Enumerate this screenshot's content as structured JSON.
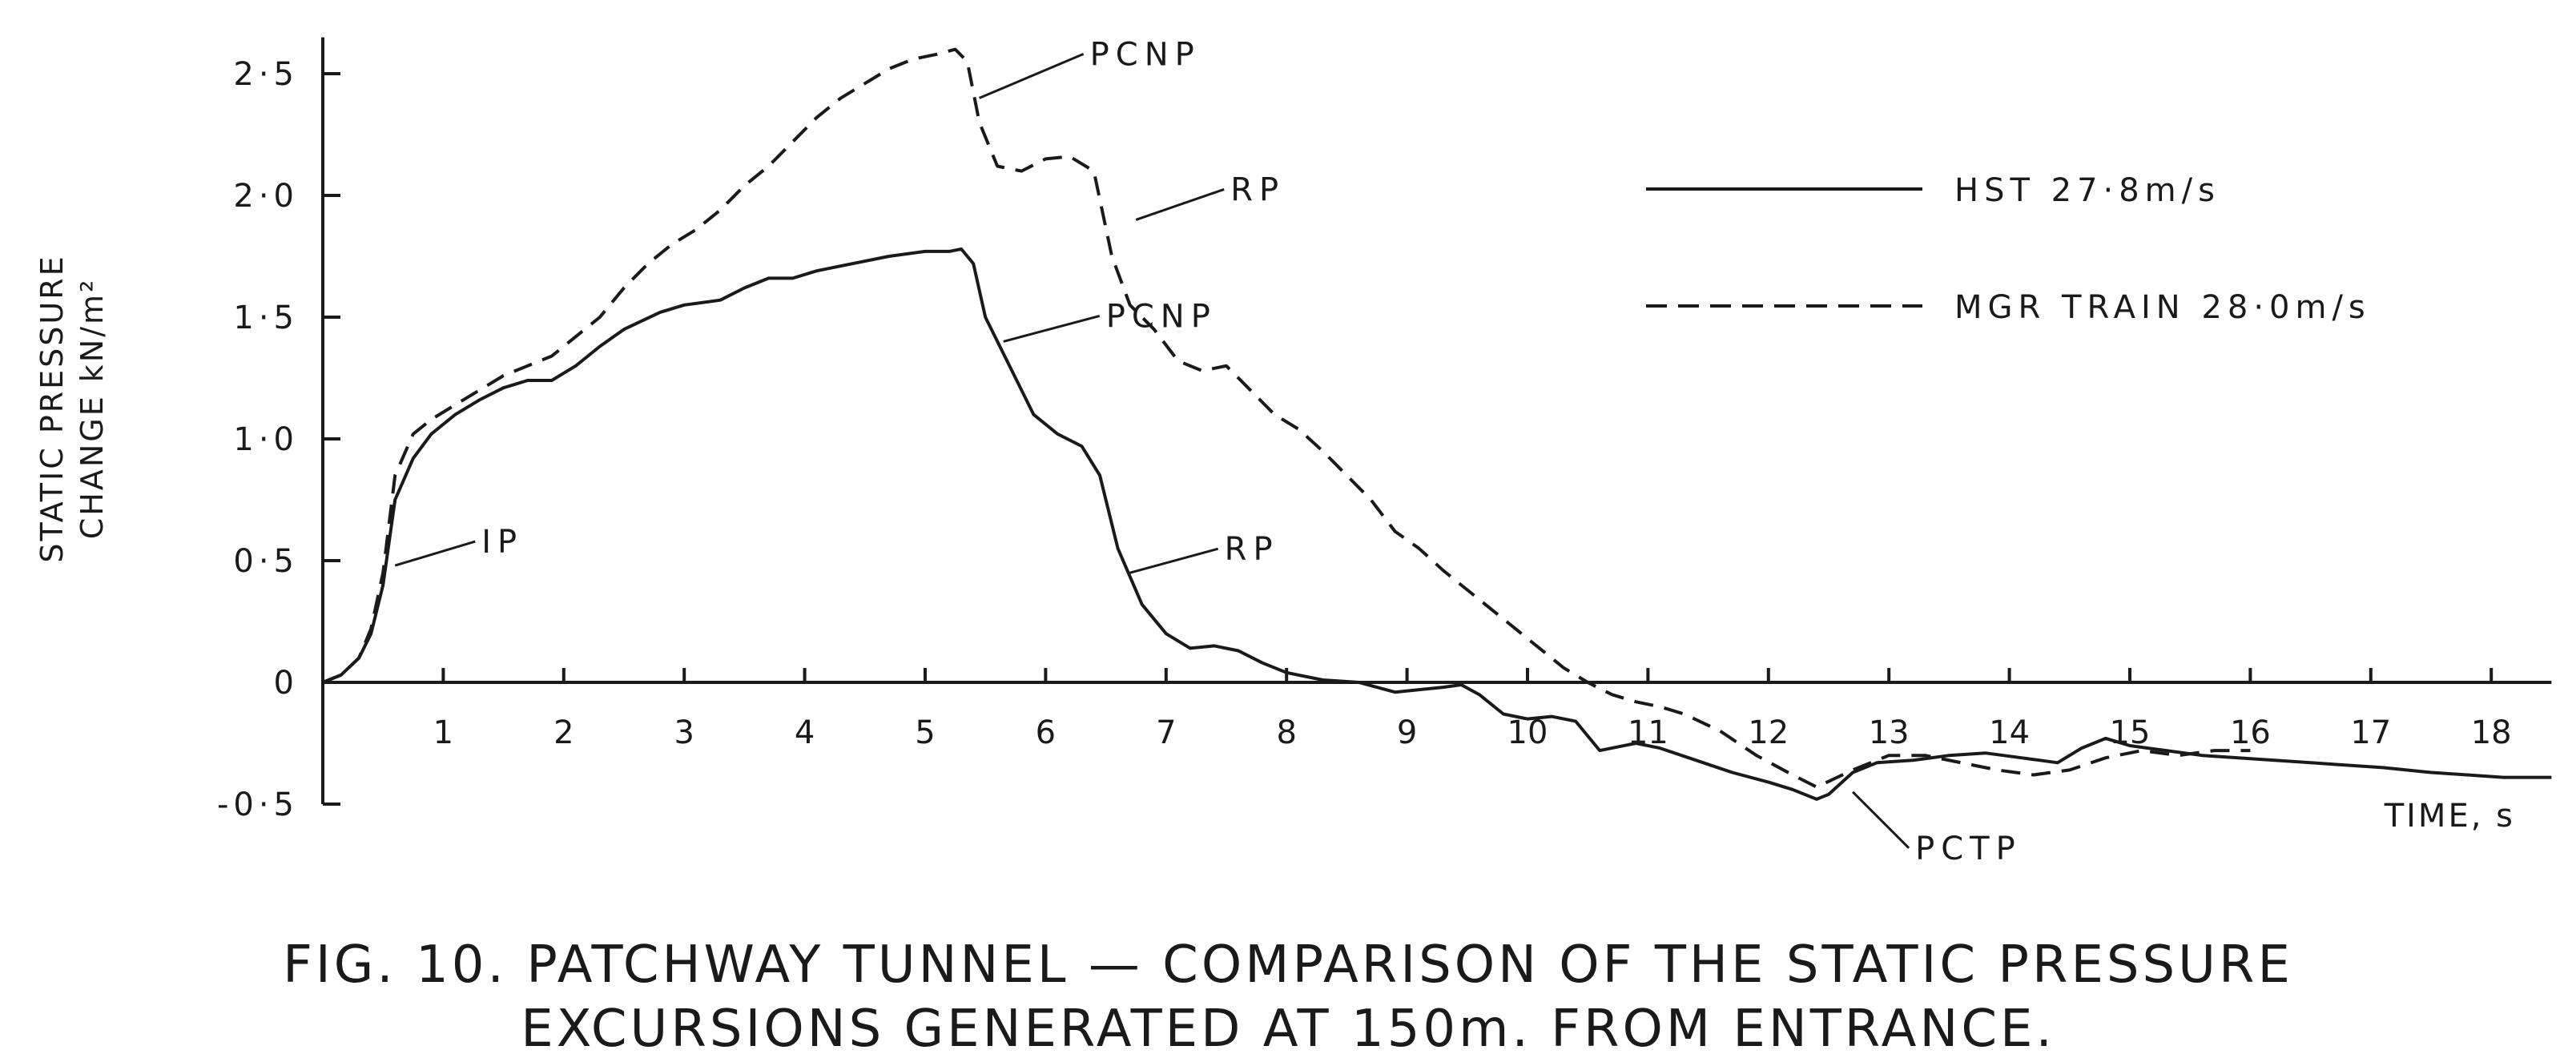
{
  "chart_data": {
    "type": "line",
    "title": "",
    "caption": [
      "FIG. 10. PATCHWAY TUNNEL — COMPARISON OF THE STATIC PRESSURE",
      "EXCURSIONS GENERATED AT 150m. FROM ENTRANCE."
    ],
    "xlabel": "TIME, s",
    "ylabel": [
      "STATIC PRESSURE",
      "CHANGE kN/m²"
    ],
    "xlim": [
      0,
      18.5
    ],
    "ylim": [
      -0.5,
      2.6
    ],
    "x_ticks": [
      1,
      2,
      3,
      4,
      5,
      6,
      7,
      8,
      9,
      10,
      11,
      12,
      13,
      14,
      15,
      16,
      17,
      18
    ],
    "x_tick_labels": [
      "1",
      "2",
      "3",
      "4",
      "5",
      "6",
      "7",
      "8",
      "9",
      "10",
      "11",
      "12",
      "13",
      "14",
      "15",
      "16",
      "17",
      "18"
    ],
    "y_ticks": [
      -0.5,
      0,
      0.5,
      1.0,
      1.5,
      2.0,
      2.5
    ],
    "y_tick_labels": [
      "-0·5",
      "0",
      "0·5",
      "1·0",
      "1·5",
      "2·0",
      "2·5"
    ],
    "grid": false,
    "legend_position": "top-right",
    "series": [
      {
        "name": "HST 27·8m/s",
        "style": "solid",
        "x": [
          0.0,
          0.15,
          0.3,
          0.4,
          0.5,
          0.6,
          0.75,
          0.9,
          1.1,
          1.3,
          1.5,
          1.7,
          1.9,
          2.1,
          2.3,
          2.5,
          2.8,
          3.0,
          3.3,
          3.5,
          3.7,
          3.9,
          4.1,
          4.4,
          4.7,
          5.0,
          5.2,
          5.3,
          5.4,
          5.5,
          5.7,
          5.9,
          6.1,
          6.3,
          6.45,
          6.6,
          6.8,
          7.0,
          7.2,
          7.4,
          7.6,
          7.8,
          8.0,
          8.3,
          8.6,
          8.9,
          9.1,
          9.3,
          9.45,
          9.6,
          9.8,
          10.0,
          10.2,
          10.4,
          10.6,
          10.9,
          11.1,
          11.4,
          11.7,
          12.0,
          12.2,
          12.4,
          12.5,
          12.7,
          12.9,
          13.2,
          13.5,
          13.8,
          14.1,
          14.4,
          14.6,
          14.8,
          15.0,
          15.3,
          15.6,
          15.9,
          16.2,
          16.5,
          16.8,
          17.1,
          17.5,
          17.8,
          18.1,
          18.5
        ],
        "y": [
          0.0,
          0.03,
          0.1,
          0.2,
          0.4,
          0.75,
          0.92,
          1.02,
          1.1,
          1.16,
          1.21,
          1.24,
          1.24,
          1.3,
          1.38,
          1.45,
          1.52,
          1.55,
          1.57,
          1.62,
          1.66,
          1.66,
          1.69,
          1.72,
          1.75,
          1.77,
          1.77,
          1.78,
          1.72,
          1.5,
          1.3,
          1.1,
          1.02,
          0.97,
          0.85,
          0.55,
          0.32,
          0.2,
          0.14,
          0.15,
          0.13,
          0.08,
          0.04,
          0.01,
          0.0,
          -0.04,
          -0.03,
          -0.02,
          -0.01,
          -0.05,
          -0.13,
          -0.15,
          -0.14,
          -0.16,
          -0.28,
          -0.25,
          -0.27,
          -0.32,
          -0.37,
          -0.41,
          -0.44,
          -0.48,
          -0.46,
          -0.37,
          -0.33,
          -0.32,
          -0.3,
          -0.29,
          -0.31,
          -0.33,
          -0.27,
          -0.23,
          -0.26,
          -0.28,
          -0.3,
          -0.31,
          -0.32,
          -0.33,
          -0.34,
          -0.35,
          -0.37,
          -0.38,
          -0.39,
          -0.39
        ]
      },
      {
        "name": "MGR TRAIN 28·0m/s",
        "style": "dashed",
        "x": [
          0.0,
          0.15,
          0.3,
          0.4,
          0.5,
          0.6,
          0.75,
          0.9,
          1.1,
          1.3,
          1.5,
          1.7,
          1.9,
          2.1,
          2.3,
          2.5,
          2.7,
          2.9,
          3.1,
          3.3,
          3.5,
          3.7,
          3.9,
          4.1,
          4.3,
          4.5,
          4.7,
          4.9,
          5.1,
          5.25,
          5.35,
          5.45,
          5.6,
          5.8,
          6.0,
          6.2,
          6.4,
          6.55,
          6.7,
          6.9,
          7.1,
          7.3,
          7.5,
          7.7,
          7.9,
          8.1,
          8.3,
          8.5,
          8.7,
          8.9,
          9.1,
          9.3,
          9.5,
          9.7,
          9.9,
          10.1,
          10.3,
          10.5,
          10.7,
          10.9,
          11.1,
          11.3,
          11.6,
          11.9,
          12.2,
          12.4,
          12.7,
          13.0,
          13.3,
          13.6,
          13.9,
          14.2,
          14.5,
          14.8,
          15.1,
          15.4,
          15.7,
          16.0
        ],
        "y": [
          0.0,
          0.03,
          0.1,
          0.22,
          0.45,
          0.85,
          1.02,
          1.08,
          1.14,
          1.2,
          1.26,
          1.3,
          1.34,
          1.42,
          1.5,
          1.62,
          1.72,
          1.8,
          1.86,
          1.94,
          2.04,
          2.12,
          2.22,
          2.32,
          2.4,
          2.46,
          2.52,
          2.56,
          2.58,
          2.6,
          2.55,
          2.3,
          2.12,
          2.1,
          2.15,
          2.16,
          2.1,
          1.75,
          1.55,
          1.45,
          1.32,
          1.28,
          1.3,
          1.2,
          1.1,
          1.04,
          0.95,
          0.85,
          0.75,
          0.62,
          0.55,
          0.46,
          0.38,
          0.3,
          0.22,
          0.14,
          0.06,
          0.0,
          -0.05,
          -0.08,
          -0.1,
          -0.13,
          -0.2,
          -0.3,
          -0.38,
          -0.43,
          -0.36,
          -0.3,
          -0.3,
          -0.33,
          -0.36,
          -0.38,
          -0.36,
          -0.31,
          -0.28,
          -0.3,
          -0.28,
          -0.28
        ]
      }
    ],
    "annotations": [
      {
        "text": "PCNP",
        "series": "MGR TRAIN 28·0m/s",
        "x": 5.45,
        "y": 2.4
      },
      {
        "text": "RP",
        "series": "MGR TRAIN 28·0m/s",
        "x": 6.75,
        "y": 1.9
      },
      {
        "text": "PCNP",
        "series": "HST 27·8m/s",
        "x": 5.65,
        "y": 1.4
      },
      {
        "text": "RP",
        "series": "HST 27·8m/s",
        "x": 6.7,
        "y": 0.45
      },
      {
        "text": "IP",
        "series": "HST 27·8m/s",
        "x": 0.6,
        "y": 0.48
      },
      {
        "text": "PCTP",
        "series": "HST 27·8m/s",
        "x": 12.7,
        "y": -0.45
      }
    ]
  }
}
